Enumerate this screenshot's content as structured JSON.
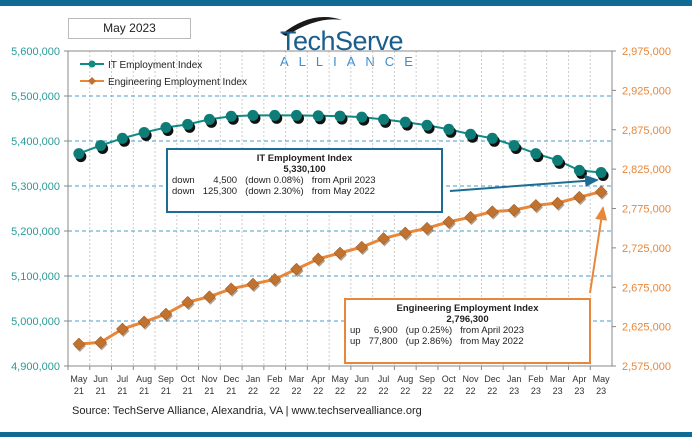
{
  "header": {
    "date_label": "May 2023",
    "logo_text": "TechServe",
    "logo_sub": "ALLIANCE"
  },
  "chart_data": {
    "type": "line",
    "categories": [
      "May 21",
      "Jun 21",
      "Jul 21",
      "Aug 21",
      "Sep 21",
      "Oct 21",
      "Nov 21",
      "Dec 21",
      "Jan 22",
      "Feb 22",
      "Mar 22",
      "Apr 22",
      "May 22",
      "Jun 22",
      "Jul 22",
      "Aug 22",
      "Sep 22",
      "Oct 22",
      "Nov 22",
      "Dec 22",
      "Jan 23",
      "Feb 23",
      "Mar 23",
      "Apr 23",
      "May 23"
    ],
    "left_axis": {
      "ylim": [
        4900000,
        5600000
      ],
      "ticks": [
        "5,600,000",
        "5,500,000",
        "5,400,000",
        "5,300,000",
        "5,200,000",
        "5,100,000",
        "5,000,000",
        "4,900,000"
      ],
      "color": "#2a9a9a"
    },
    "right_axis": {
      "ylim": [
        2575000,
        2975000
      ],
      "ticks": [
        "2,975,000",
        "2,925,000",
        "2,875,000",
        "2,825,000",
        "2,775,000",
        "2,725,000",
        "2,675,000",
        "2,625,000",
        "2,575,000"
      ],
      "color": "#e8873a"
    },
    "series": [
      {
        "name": "IT Employment Index",
        "axis": "left",
        "color": "#0f8a84",
        "values": [
          5372000,
          5390000,
          5406000,
          5419000,
          5430000,
          5437000,
          5448000,
          5455000,
          5457000,
          5457000,
          5457000,
          5456000,
          5455400,
          5453000,
          5448000,
          5442000,
          5435000,
          5426000,
          5415000,
          5406000,
          5390000,
          5372000,
          5357000,
          5334600,
          5330100
        ]
      },
      {
        "name": "Engineering Employment Index",
        "axis": "right",
        "color": "#e8873a",
        "values": [
          2603000,
          2605000,
          2622000,
          2631000,
          2641000,
          2656000,
          2663000,
          2673000,
          2679000,
          2685000,
          2698000,
          2711000,
          2718500,
          2726000,
          2737000,
          2744000,
          2750000,
          2758000,
          2764000,
          2771000,
          2773000,
          2779000,
          2782000,
          2789400,
          2796300
        ]
      }
    ],
    "grid": true,
    "legend": "top-left"
  },
  "it_callout": {
    "title": "IT Employment Index",
    "value": "5,330,100",
    "rows": [
      [
        "down",
        "4,500",
        "(down 0.08%)",
        "from  April 2023"
      ],
      [
        "down",
        "125,300",
        "(down 2.30%)",
        "from  May 2022"
      ]
    ]
  },
  "eng_callout": {
    "title": "Engineering Employment Index",
    "value": "2,796,300",
    "rows": [
      [
        "up",
        "6,900",
        "(up  0.25%)",
        "from  April 2023"
      ],
      [
        "up",
        "77,800",
        "(up 2.86%)",
        "from  May 2022"
      ]
    ]
  },
  "source": "Source: TechServe Alliance, Alexandria, VA | www.techservealliance.org"
}
